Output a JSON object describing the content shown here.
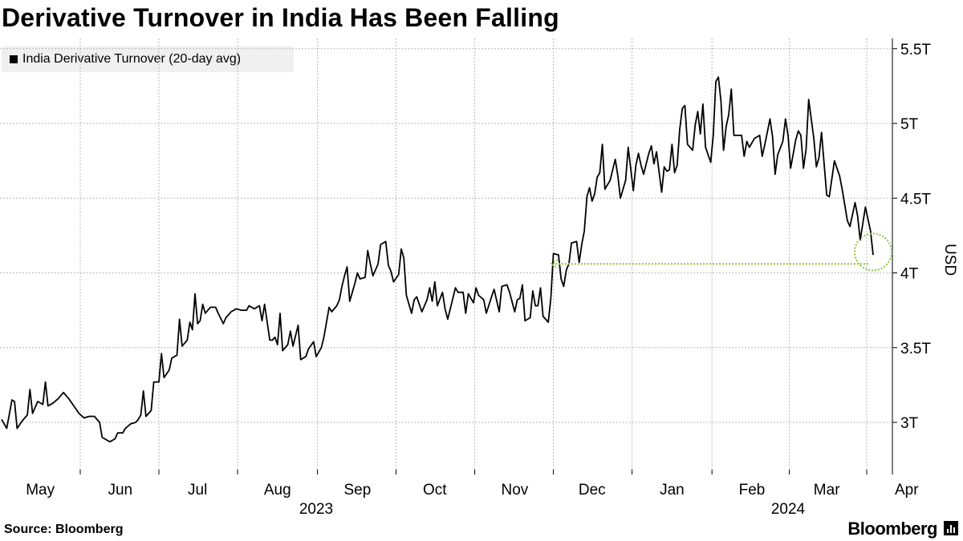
{
  "chart_data": {
    "type": "line",
    "title": "Derivative Turnover in India Has Been Falling",
    "legend": [
      "India Derivative Turnover (20-day avg)"
    ],
    "ylabel": "USD",
    "ylim": [
      2.65,
      5.6
    ],
    "yticks": [
      {
        "value": 3.0,
        "label": "3T"
      },
      {
        "value": 3.5,
        "label": "3.5T"
      },
      {
        "value": 4.0,
        "label": "4T"
      },
      {
        "value": 4.5,
        "label": "4.5T"
      },
      {
        "value": 5.0,
        "label": "5T"
      },
      {
        "value": 5.5,
        "label": "5.5T"
      }
    ],
    "xrange_days": [
      0,
      350
    ],
    "months": [
      {
        "label": "May",
        "day": 15
      },
      {
        "label": "Jun",
        "day": 46
      },
      {
        "label": "Jul",
        "day": 76
      },
      {
        "label": "Aug",
        "day": 107
      },
      {
        "label": "Sep",
        "day": 138
      },
      {
        "label": "Oct",
        "day": 168
      },
      {
        "label": "Nov",
        "day": 199
      },
      {
        "label": "Dec",
        "day": 229
      },
      {
        "label": "Jan",
        "day": 260
      },
      {
        "label": "Feb",
        "day": 291
      },
      {
        "label": "Mar",
        "day": 320
      },
      {
        "label": "Apr",
        "day": 351
      }
    ],
    "years": [
      {
        "label": "2023",
        "day": 122
      },
      {
        "label": "2024",
        "day": 305
      }
    ],
    "grid": true,
    "series": [
      {
        "name": "India Derivative Turnover (20-day avg)",
        "color": "#000000",
        "points": [
          [
            0,
            3.02
          ],
          [
            2,
            2.96
          ],
          [
            4,
            3.15
          ],
          [
            5,
            3.14
          ],
          [
            6,
            2.96
          ],
          [
            8,
            3.01
          ],
          [
            10,
            3.05
          ],
          [
            11,
            3.22
          ],
          [
            12,
            3.06
          ],
          [
            14,
            3.14
          ],
          [
            16,
            3.12
          ],
          [
            17,
            3.27
          ],
          [
            18,
            3.11
          ],
          [
            20,
            3.13
          ],
          [
            22,
            3.16
          ],
          [
            24,
            3.2
          ],
          [
            26,
            3.16
          ],
          [
            28,
            3.11
          ],
          [
            30,
            3.06
          ],
          [
            32,
            3.03
          ],
          [
            34,
            3.04
          ],
          [
            36,
            3.04
          ],
          [
            38,
            3.0
          ],
          [
            39,
            2.9
          ],
          [
            41,
            2.88
          ],
          [
            42,
            2.87
          ],
          [
            44,
            2.89
          ],
          [
            45,
            2.93
          ],
          [
            47,
            2.93
          ],
          [
            48,
            2.96
          ],
          [
            50,
            2.99
          ],
          [
            52,
            3.0
          ],
          [
            53,
            3.02
          ],
          [
            54,
            3.05
          ],
          [
            55,
            3.21
          ],
          [
            56,
            3.04
          ],
          [
            58,
            3.08
          ],
          [
            59,
            3.27
          ],
          [
            61,
            3.27
          ],
          [
            62,
            3.46
          ],
          [
            63,
            3.3
          ],
          [
            65,
            3.35
          ],
          [
            66,
            3.43
          ],
          [
            68,
            3.45
          ],
          [
            69,
            3.69
          ],
          [
            70,
            3.51
          ],
          [
            72,
            3.55
          ],
          [
            73,
            3.67
          ],
          [
            74,
            3.62
          ],
          [
            75,
            3.86
          ],
          [
            76,
            3.66
          ],
          [
            77,
            3.68
          ],
          [
            78,
            3.79
          ],
          [
            79,
            3.73
          ],
          [
            80,
            3.75
          ],
          [
            81,
            3.77
          ],
          [
            83,
            3.77
          ],
          [
            84,
            3.73
          ],
          [
            86,
            3.66
          ],
          [
            87,
            3.7
          ],
          [
            89,
            3.74
          ],
          [
            91,
            3.76
          ],
          [
            93,
            3.75
          ],
          [
            95,
            3.75
          ],
          [
            96,
            3.78
          ],
          [
            98,
            3.76
          ],
          [
            100,
            3.78
          ],
          [
            101,
            3.68
          ],
          [
            102,
            3.79
          ],
          [
            104,
            3.55
          ],
          [
            105,
            3.55
          ],
          [
            106,
            3.57
          ],
          [
            107,
            3.52
          ],
          [
            108,
            3.73
          ],
          [
            109,
            3.48
          ],
          [
            111,
            3.52
          ],
          [
            112,
            3.61
          ],
          [
            113,
            3.51
          ],
          [
            115,
            3.65
          ],
          [
            116,
            3.42
          ],
          [
            118,
            3.44
          ],
          [
            119,
            3.49
          ],
          [
            121,
            3.54
          ],
          [
            122,
            3.44
          ],
          [
            124,
            3.5
          ],
          [
            125,
            3.57
          ],
          [
            127,
            3.77
          ],
          [
            128,
            3.74
          ],
          [
            130,
            3.78
          ],
          [
            131,
            3.82
          ],
          [
            132,
            3.91
          ],
          [
            133,
            3.98
          ],
          [
            134,
            4.04
          ],
          [
            135,
            3.81
          ],
          [
            137,
            3.93
          ],
          [
            138,
            4.0
          ],
          [
            139,
            3.96
          ],
          [
            141,
            3.97
          ],
          [
            142,
            4.15
          ],
          [
            143,
            4.06
          ],
          [
            144,
            3.98
          ],
          [
            146,
            4.06
          ],
          [
            147,
            4.19
          ],
          [
            149,
            4.21
          ],
          [
            150,
            4.05
          ],
          [
            151,
            4.01
          ],
          [
            152,
            3.94
          ],
          [
            154,
            3.99
          ],
          [
            155,
            4.16
          ],
          [
            156,
            4.1
          ],
          [
            157,
            3.85
          ],
          [
            159,
            3.73
          ],
          [
            160,
            3.82
          ],
          [
            161,
            3.84
          ],
          [
            163,
            3.74
          ],
          [
            165,
            3.82
          ],
          [
            166,
            3.9
          ],
          [
            167,
            3.81
          ],
          [
            168,
            3.94
          ],
          [
            169,
            3.78
          ],
          [
            171,
            3.87
          ],
          [
            172,
            3.76
          ],
          [
            173,
            3.69
          ],
          [
            175,
            3.83
          ],
          [
            176,
            3.9
          ],
          [
            177,
            3.87
          ],
          [
            179,
            3.87
          ],
          [
            180,
            3.73
          ],
          [
            181,
            3.86
          ],
          [
            183,
            3.8
          ],
          [
            184,
            3.9
          ],
          [
            185,
            3.85
          ],
          [
            187,
            3.82
          ],
          [
            188,
            3.73
          ],
          [
            190,
            3.84
          ],
          [
            191,
            3.89
          ],
          [
            193,
            3.74
          ],
          [
            194,
            3.91
          ],
          [
            196,
            3.92
          ],
          [
            197,
            3.87
          ],
          [
            199,
            3.74
          ],
          [
            200,
            3.82
          ],
          [
            201,
            3.83
          ],
          [
            202,
            3.92
          ],
          [
            203,
            3.68
          ],
          [
            205,
            3.7
          ],
          [
            206,
            3.88
          ],
          [
            207,
            3.78
          ],
          [
            208,
            3.78
          ],
          [
            209,
            3.9
          ],
          [
            210,
            3.71
          ],
          [
            212,
            3.67
          ],
          [
            213,
            3.83
          ],
          [
            214,
            4.13
          ],
          [
            216,
            4.12
          ],
          [
            217,
            3.96
          ],
          [
            218,
            3.91
          ],
          [
            219,
            4.02
          ],
          [
            220,
            4.06
          ],
          [
            221,
            4.2
          ],
          [
            223,
            4.21
          ],
          [
            224,
            4.07
          ],
          [
            225,
            4.19
          ],
          [
            226,
            4.28
          ],
          [
            227,
            4.51
          ],
          [
            228,
            4.57
          ],
          [
            229,
            4.48
          ],
          [
            230,
            4.53
          ],
          [
            231,
            4.64
          ],
          [
            232,
            4.67
          ],
          [
            233,
            4.86
          ],
          [
            234,
            4.56
          ],
          [
            236,
            4.62
          ],
          [
            237,
            4.69
          ],
          [
            238,
            4.76
          ],
          [
            239,
            4.65
          ],
          [
            240,
            4.5
          ],
          [
            242,
            4.62
          ],
          [
            243,
            4.84
          ],
          [
            245,
            4.55
          ],
          [
            246,
            4.72
          ],
          [
            247,
            4.8
          ],
          [
            248,
            4.72
          ],
          [
            249,
            4.66
          ],
          [
            251,
            4.8
          ],
          [
            252,
            4.85
          ],
          [
            253,
            4.73
          ],
          [
            254,
            4.81
          ],
          [
            256,
            4.54
          ],
          [
            257,
            4.71
          ],
          [
            258,
            4.68
          ],
          [
            259,
            4.69
          ],
          [
            260,
            4.86
          ],
          [
            261,
            4.67
          ],
          [
            262,
            4.72
          ],
          [
            263,
            4.96
          ],
          [
            264,
            5.1
          ],
          [
            265,
            5.12
          ],
          [
            266,
            4.86
          ],
          [
            268,
            4.82
          ],
          [
            269,
            4.99
          ],
          [
            270,
            5.08
          ],
          [
            271,
            4.93
          ],
          [
            272,
            5.13
          ],
          [
            273,
            4.84
          ],
          [
            275,
            4.74
          ],
          [
            276,
            4.92
          ],
          [
            277,
            5.28
          ],
          [
            278,
            5.31
          ],
          [
            279,
            5.15
          ],
          [
            280,
            4.82
          ],
          [
            281,
            4.98
          ],
          [
            282,
            5.06
          ],
          [
            283,
            5.23
          ],
          [
            284,
            4.92
          ],
          [
            287,
            4.92
          ],
          [
            288,
            4.78
          ],
          [
            289,
            4.88
          ],
          [
            290,
            4.84
          ],
          [
            292,
            4.9
          ],
          [
            294,
            4.92
          ],
          [
            295,
            4.78
          ],
          [
            296,
            4.86
          ],
          [
            298,
            5.03
          ],
          [
            299,
            4.91
          ],
          [
            300,
            4.66
          ],
          [
            301,
            4.79
          ],
          [
            303,
            4.88
          ],
          [
            304,
            5.03
          ],
          [
            305,
            4.92
          ],
          [
            306,
            4.7
          ],
          [
            308,
            4.89
          ],
          [
            309,
            4.95
          ],
          [
            310,
            4.92
          ],
          [
            311,
            4.7
          ],
          [
            312,
            4.83
          ],
          [
            313,
            5.16
          ],
          [
            315,
            4.9
          ],
          [
            316,
            4.71
          ],
          [
            317,
            4.77
          ],
          [
            318,
            4.94
          ],
          [
            320,
            4.52
          ],
          [
            321,
            4.51
          ],
          [
            323,
            4.75
          ],
          [
            325,
            4.65
          ],
          [
            326,
            4.56
          ],
          [
            328,
            4.35
          ],
          [
            329,
            4.31
          ],
          [
            331,
            4.47
          ],
          [
            332,
            4.38
          ],
          [
            333,
            4.22
          ],
          [
            335,
            4.44
          ],
          [
            337,
            4.28
          ],
          [
            338,
            4.12
          ]
        ]
      }
    ],
    "annotation": {
      "type": "arrow",
      "color": "#8dc63f",
      "from_day": 338,
      "to_day": 212,
      "y_value": 4.06
    }
  },
  "footer": {
    "source": "Source: Bloomberg",
    "brand": "Bloomberg"
  }
}
